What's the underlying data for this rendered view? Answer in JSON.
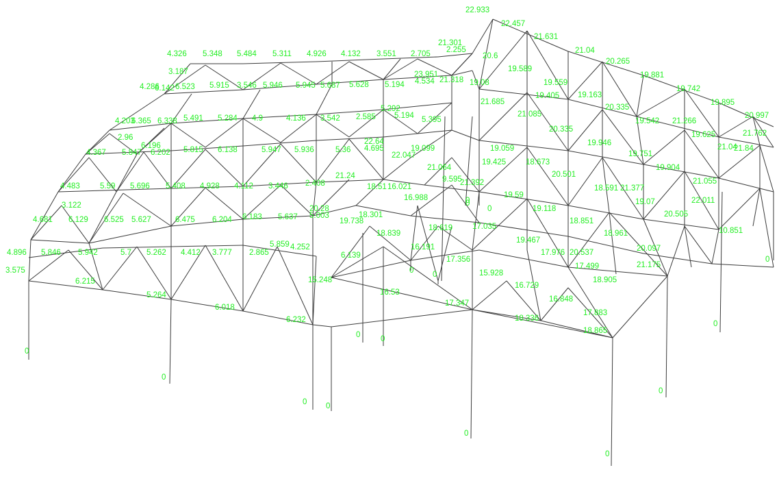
{
  "view": {
    "label_color": "#22ee22",
    "member_color": "#3a3a3a",
    "background": "#ffffff"
  },
  "labels": [
    "22.933",
    "22.457",
    "21.631",
    "21.301",
    "2.255",
    "21.04",
    "20.6",
    "20.265",
    "19.881",
    "19.742",
    "19.895",
    "20.997",
    "21.762",
    "21.04",
    "21.84",
    "4.326",
    "5.348",
    "5.484",
    "5.311",
    "4.926",
    "4.132",
    "3.551",
    "2.705",
    "3.187",
    "4.286",
    "6.142",
    "6.523",
    "5.915",
    "3.546",
    "5.946",
    "5.945",
    "5.687",
    "5.628",
    "5.194",
    "4.534",
    "23.951",
    "21.318",
    "19.08",
    "19.589",
    "19.559",
    "19.405",
    "19.163",
    "20.335",
    "19.542",
    "21.266",
    "19.625",
    "4.203",
    "6.365",
    "6.338",
    "5.491",
    "5.284",
    "4.9",
    "4.136",
    "3.542",
    "2.585",
    "5.292",
    "5.194",
    "5.395",
    "21.685",
    "21.085",
    "20.335",
    "19.946",
    "19.751",
    "19.904",
    "21.055",
    "2.96",
    "6.196",
    "4.367",
    "5.847",
    "6.202",
    "5.815",
    "6.138",
    "5.947",
    "5.936",
    "5.36",
    "22.64",
    "4.695",
    "22.047",
    "19.099",
    "19.059",
    "19.425",
    "18.673",
    "20.501",
    "21.064",
    "18.591",
    "21.377",
    "19.07",
    "4.483",
    "5.59",
    "5.696",
    "5.408",
    "4.928",
    "4.112",
    "3.446",
    "2.408",
    "21.24",
    "18.51",
    "16.021",
    "21.392",
    "9.595",
    "3.122",
    "4.681",
    "6.129",
    "6.525",
    "5.627",
    "6.475",
    "6.204",
    "6.183",
    "5.637",
    "20.28",
    "5.003",
    "19.738",
    "18.301",
    "16.988",
    "19.59",
    "19.118",
    "18.851",
    "18.961",
    "22.011",
    "20.505",
    "0",
    "0",
    "4.896",
    "5.846",
    "5.942",
    "5.7",
    "5.262",
    "4.412",
    "3.777",
    "2.865",
    "5.859",
    "4.252",
    "6.139",
    "18.619",
    "18.839",
    "17.035",
    "19.467",
    "20.537",
    "17.976",
    "17.499",
    "20.097",
    "21.175",
    "18.905",
    "10.851",
    "3.575",
    "6.215",
    "5.264",
    "6.018",
    "6.232",
    "15.248",
    "16.53",
    "16.191",
    "17.356",
    "15.928",
    "16.729",
    "16.848",
    "17.883",
    "17.347",
    "18.336",
    "18.865",
    "0",
    "0",
    "0",
    "0",
    "0",
    "0",
    "0",
    "0",
    "0",
    "0",
    "0",
    "0",
    "0",
    "0"
  ]
}
